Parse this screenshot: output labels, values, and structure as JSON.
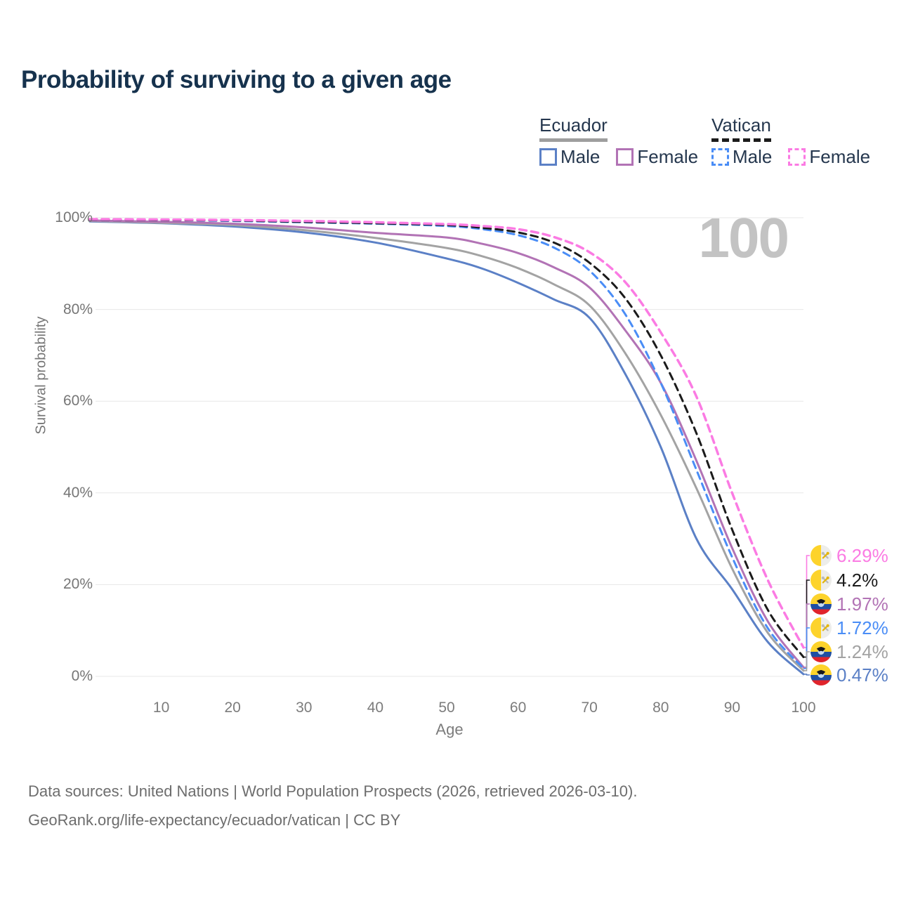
{
  "title": "Probability of surviving to a given age",
  "watermark": "100",
  "legend": {
    "groups": [
      {
        "label": "Ecuador",
        "key_style": "solid",
        "key_color": "#9e9e9e",
        "items": [
          {
            "label": "Male",
            "color": "#5b80c6",
            "style": "solid"
          },
          {
            "label": "Female",
            "color": "#b273b5",
            "style": "solid"
          }
        ]
      },
      {
        "label": "Vatican",
        "key_style": "dashed",
        "key_color": "#1b1b1b",
        "items": [
          {
            "label": "Male",
            "color": "#4a8df6",
            "style": "dashed"
          },
          {
            "label": "Female",
            "color": "#fb7be3",
            "style": "dashed"
          }
        ]
      }
    ]
  },
  "chart_data": {
    "type": "line",
    "title": "Probability of surviving to a given age",
    "xlabel": "Age",
    "ylabel": "Survival probability",
    "xlim": [
      0,
      100
    ],
    "ylim": [
      0,
      100
    ],
    "grid": "horizontal",
    "legend_position": "top-right",
    "x_ticks": [
      {
        "label": "10",
        "v": 10
      },
      {
        "label": "20",
        "v": 20
      },
      {
        "label": "30",
        "v": 30
      },
      {
        "label": "40",
        "v": 40
      },
      {
        "label": "50",
        "v": 50
      },
      {
        "label": "60",
        "v": 60
      },
      {
        "label": "70",
        "v": 70
      },
      {
        "label": "80",
        "v": 80
      },
      {
        "label": "90",
        "v": 90
      },
      {
        "label": "100",
        "v": 100
      }
    ],
    "y_ticks": [
      {
        "label": "0%",
        "v": 0
      },
      {
        "label": "20%",
        "v": 20
      },
      {
        "label": "40%",
        "v": 40
      },
      {
        "label": "60%",
        "v": 60
      },
      {
        "label": "80%",
        "v": 80
      },
      {
        "label": "100%",
        "v": 100
      }
    ],
    "x": [
      0,
      10,
      20,
      30,
      40,
      50,
      55,
      60,
      65,
      70,
      75,
      80,
      85,
      90,
      95,
      100
    ],
    "series": [
      {
        "name": "Ecuador Male",
        "color": "#5b80c6",
        "dashed": false,
        "values": [
          99.2,
          98.8,
          98.1,
          96.8,
          94.6,
          91.1,
          88.9,
          85.8,
          82.2,
          78.2,
          66,
          50,
          30,
          19,
          7.5,
          0.47
        ]
      },
      {
        "name": "Ecuador",
        "color": "#a3a3a3",
        "dashed": false,
        "values": [
          99.3,
          98.9,
          98.4,
          97.3,
          95.6,
          93.4,
          91.6,
          89,
          85.5,
          80.9,
          70.5,
          57,
          41,
          23.5,
          9.5,
          1.24
        ]
      },
      {
        "name": "Ecuador Female",
        "color": "#b273b5",
        "dashed": false,
        "values": [
          99.4,
          99.1,
          98.7,
          97.9,
          96.7,
          95.7,
          94.3,
          92.3,
          89.2,
          84.8,
          75.5,
          64,
          47,
          28,
          12,
          1.97
        ]
      },
      {
        "name": "Vatican Male",
        "color": "#4a8df6",
        "dashed": true,
        "values": [
          99.6,
          99.5,
          99.3,
          99,
          98.7,
          98.2,
          97.5,
          96.2,
          93.5,
          88.5,
          79,
          64,
          45,
          26,
          10.5,
          1.72
        ]
      },
      {
        "name": "Vatican",
        "color": "#1b1b1b",
        "dashed": true,
        "values": [
          99.6,
          99.5,
          99.4,
          99.1,
          98.8,
          98.4,
          97.8,
          96.8,
          94.6,
          90.2,
          82.5,
          70,
          53,
          32,
          14.5,
          4.2
        ]
      },
      {
        "name": "Vatican Female",
        "color": "#fb7be3",
        "dashed": true,
        "values": [
          99.7,
          99.6,
          99.5,
          99.3,
          99,
          98.6,
          98.2,
          97.5,
          95.8,
          92.5,
          86,
          75,
          61,
          40,
          21,
          6.29
        ]
      }
    ],
    "end_labels": [
      {
        "series": "Vatican Female",
        "text": "6.29%",
        "value": 6.29,
        "color": "#fb7be3",
        "flag": "vatican"
      },
      {
        "series": "Vatican",
        "text": "4.2%",
        "value": 4.2,
        "color": "#1b1b1b",
        "flag": "vatican"
      },
      {
        "series": "Ecuador Female",
        "text": "1.97%",
        "value": 1.97,
        "color": "#b273b5",
        "flag": "ecuador"
      },
      {
        "series": "Vatican Male",
        "text": "1.72%",
        "value": 1.72,
        "color": "#4a8df6",
        "flag": "vatican"
      },
      {
        "series": "Ecuador",
        "text": "1.24%",
        "value": 1.24,
        "color": "#a3a3a3",
        "flag": "ecuador"
      },
      {
        "series": "Ecuador Male",
        "text": "0.47%",
        "value": 0.47,
        "color": "#5b80c6",
        "flag": "ecuador"
      }
    ]
  },
  "footer": {
    "line1": "Data sources: United Nations | World Population Prospects (2026, retrieved 2026-03-10).",
    "line2": "GeoRank.org/life-expectancy/ecuador/vatican | CC BY"
  }
}
